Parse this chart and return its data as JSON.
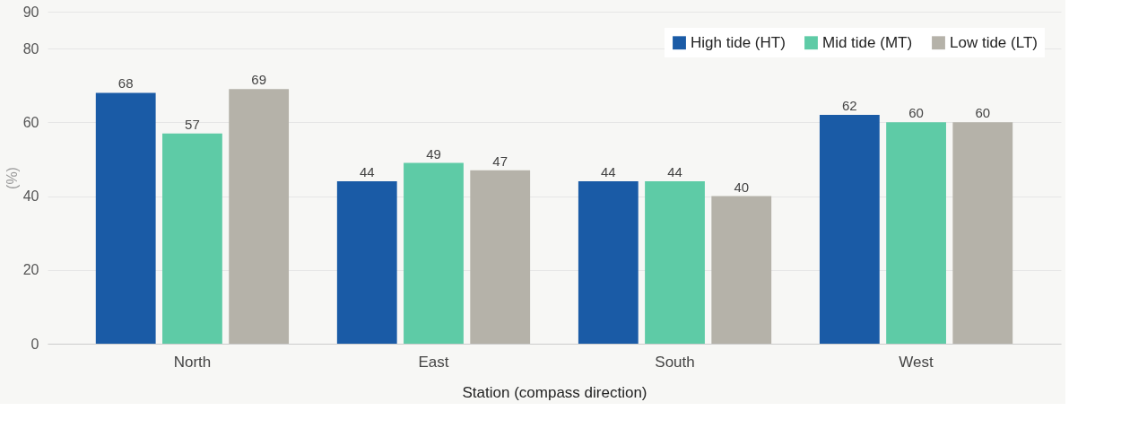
{
  "chart_data": {
    "type": "bar",
    "xlabel": "Station (compass direction)",
    "ylabel": "(%)",
    "categories": [
      "North",
      "East",
      "South",
      "West"
    ],
    "series": [
      {
        "name": "High tide (HT)",
        "color": "#1a5ba6",
        "values": [
          68,
          44,
          44,
          62
        ]
      },
      {
        "name": "Mid tide (MT)",
        "color": "#5ecba6",
        "values": [
          57,
          49,
          44,
          60
        ]
      },
      {
        "name": "Low tide (LT)",
        "color": "#b5b2a9",
        "values": [
          69,
          47,
          40,
          60
        ]
      }
    ],
    "ylim": [
      0,
      90
    ],
    "yticks": [
      0,
      20,
      40,
      60,
      80,
      90
    ],
    "grid": "y",
    "legend": "top right",
    "data_labels": true
  }
}
